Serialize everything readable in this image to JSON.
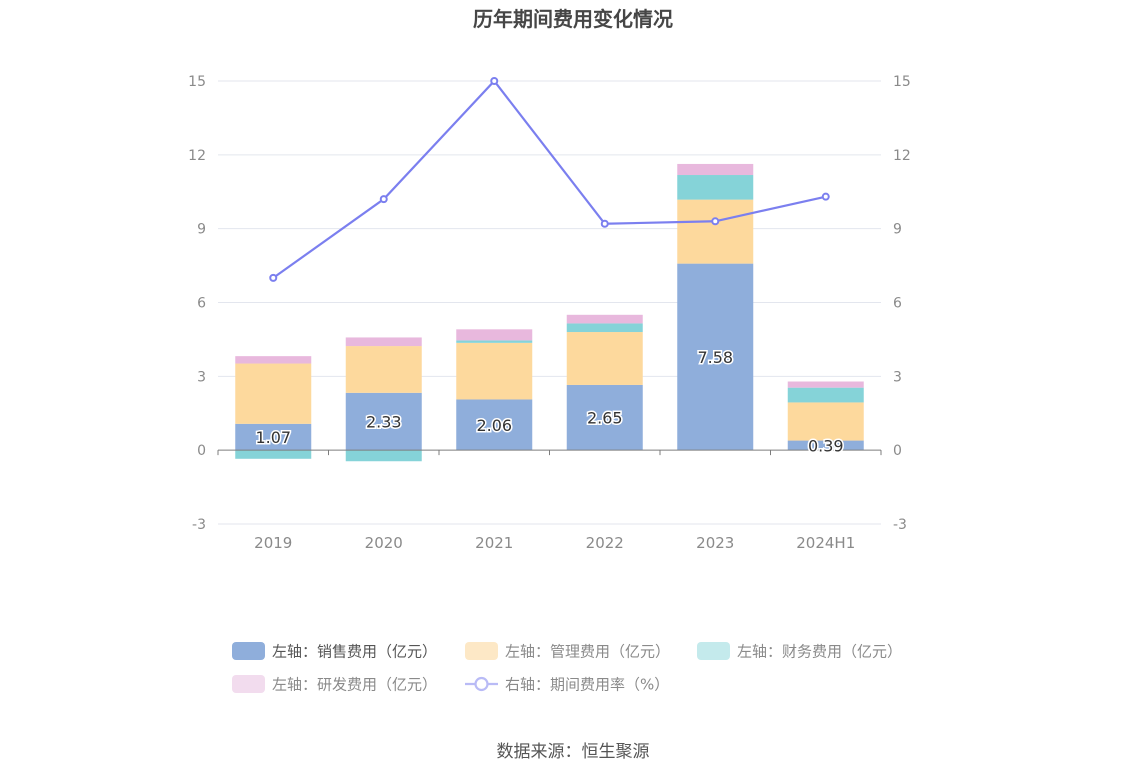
{
  "chart_data": {
    "type": "bar",
    "title": "历年期间费用变化情况",
    "categories": [
      "2019",
      "2020",
      "2021",
      "2022",
      "2023",
      "2024H1"
    ],
    "y_left": {
      "min": -3,
      "max": 15,
      "ticks": [
        -3,
        0,
        3,
        6,
        9,
        12,
        15
      ]
    },
    "y_right": {
      "min": -3,
      "max": 15,
      "ticks": [
        -3,
        0,
        3,
        6,
        9,
        12,
        15
      ]
    },
    "series": [
      {
        "name": "左轴：销售费用（亿元）",
        "type": "bar",
        "axis": "left",
        "color": "#8faedb",
        "values": [
          1.07,
          2.33,
          2.06,
          2.65,
          7.58,
          0.39
        ],
        "labels": [
          "1.07",
          "2.33",
          "2.06",
          "2.65",
          "7.58",
          "0.39"
        ]
      },
      {
        "name": "左轴：管理费用（亿元）",
        "type": "bar",
        "axis": "left",
        "color": "#fdd99d",
        "values": [
          2.45,
          1.9,
          2.3,
          2.15,
          2.6,
          1.55
        ]
      },
      {
        "name": "左轴：财务费用（亿元）",
        "type": "bar",
        "axis": "left",
        "color": "#85d3d8",
        "values": [
          -0.35,
          -0.45,
          0.1,
          0.35,
          1.0,
          0.6
        ]
      },
      {
        "name": "左轴：研发费用（亿元）",
        "type": "bar",
        "axis": "left",
        "color": "#e8b8dd",
        "values": [
          0.3,
          0.35,
          0.45,
          0.35,
          0.45,
          0.25
        ]
      },
      {
        "name": "右轴：期间费用率（%）",
        "type": "line",
        "axis": "right",
        "color": "#7b7fef",
        "values": [
          7.0,
          10.2,
          15.0,
          9.2,
          9.3,
          10.3
        ]
      }
    ],
    "legend": {
      "placement": "bottom",
      "items": [
        {
          "label": "左轴：销售费用（亿元）",
          "color": "#8faedb",
          "swatch": "bar",
          "active": true
        },
        {
          "label": "左轴：管理费用（亿元）",
          "color": "#fde8c6",
          "swatch": "bar",
          "active": false
        },
        {
          "label": "左轴：财务费用（亿元）",
          "color": "#c4eaec",
          "swatch": "bar",
          "active": false
        },
        {
          "label": "左轴：研发费用（亿元）",
          "color": "#f2dcee",
          "swatch": "bar",
          "active": false
        },
        {
          "label": "右轴：期间费用率（%）",
          "color": "#b9bbf6",
          "swatch": "line",
          "active": false
        }
      ]
    }
  },
  "source": "数据来源：恒生聚源"
}
